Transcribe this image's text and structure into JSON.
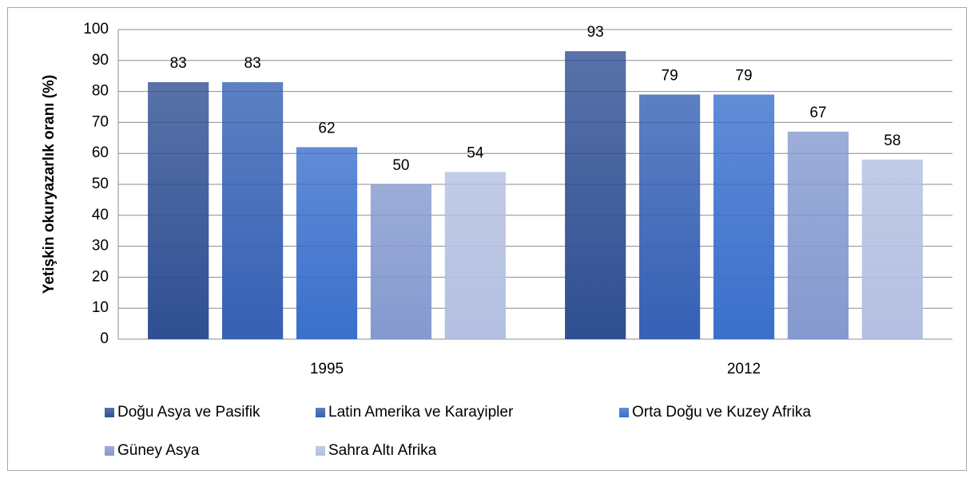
{
  "chart_data": {
    "type": "bar",
    "categories": [
      "1995",
      "2012"
    ],
    "y_label": "Yetişkin okuryazarlık oranı (%)",
    "series": [
      {
        "name": "Doğu Asya ve Pasifik",
        "color": "#2f4f93",
        "values": [
          83,
          93
        ]
      },
      {
        "name": "Latin Amerika ve Karayipler",
        "color": "#3560b4",
        "values": [
          83,
          79
        ]
      },
      {
        "name": "Orta Doğu ve Kuzey Afrika",
        "color": "#3a6fcc",
        "values": [
          62,
          79
        ]
      },
      {
        "name": "Güney Asya",
        "color": "#8499cf",
        "values": [
          50,
          67
        ]
      },
      {
        "name": "Sahra Altı Afrika",
        "color": "#b3bfe1",
        "values": [
          54,
          58
        ]
      }
    ],
    "ylim": [
      0,
      100
    ],
    "yticks": [
      0,
      10,
      20,
      30,
      40,
      50,
      60,
      70,
      80,
      90,
      100
    ],
    "grid": true,
    "legend": "bottom"
  }
}
